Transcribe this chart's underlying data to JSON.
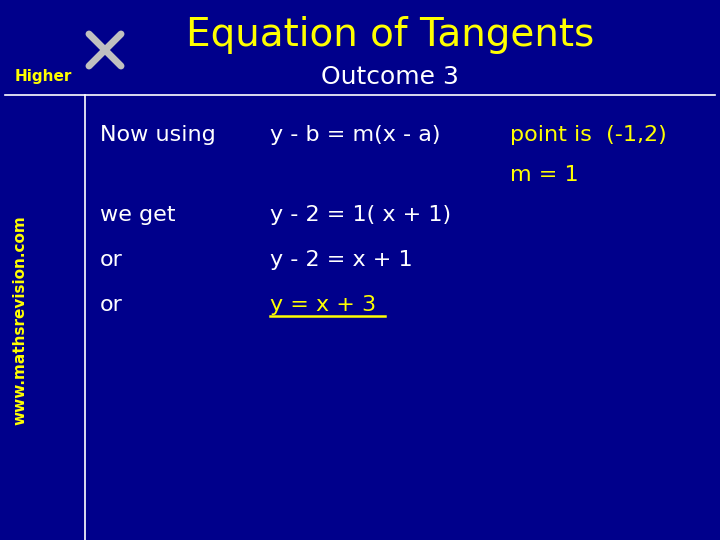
{
  "bg_color": "#00008B",
  "title": "Equation of Tangents",
  "title_color": "#FFFF00",
  "title_fontsize": 28,
  "outcome_text": "Outcome 3",
  "outcome_color": "#FFFFFF",
  "outcome_fontsize": 18,
  "higher_text": "Higher",
  "higher_color": "#FFFF00",
  "higher_fontsize": 11,
  "website_text": "www.mathsrevision.com",
  "website_color": "#FFFF00",
  "website_fontsize": 11,
  "line_color": "#FFFFFF",
  "rows": [
    {
      "col1": "Now using",
      "col2": "y - b = m(x - a)",
      "col3": "point is  (-1,2)",
      "col3_yellow": true,
      "col2_yellow": false,
      "underline": false
    },
    {
      "col1": "",
      "col2": "",
      "col3": "m = 1",
      "col3_yellow": true,
      "col2_yellow": false,
      "underline": false
    },
    {
      "col1": "we get",
      "col2": "y - 2 = 1( x + 1)",
      "col3": "",
      "col3_yellow": false,
      "col2_yellow": false,
      "underline": false
    },
    {
      "col1": "or",
      "col2": "y - 2 = x + 1",
      "col3": "",
      "col3_yellow": false,
      "col2_yellow": false,
      "underline": false
    },
    {
      "col1": "or",
      "col2": "y = x + 3",
      "col3": "",
      "col3_yellow": false,
      "col2_yellow": true,
      "underline": true
    }
  ],
  "text_color_white": "#FFFFFF",
  "text_color_yellow": "#FFFF00",
  "content_fontsize": 16
}
